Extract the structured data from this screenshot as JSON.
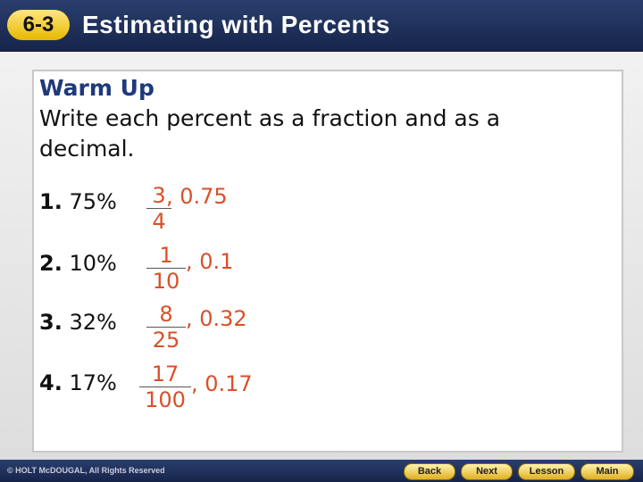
{
  "header": {
    "badge": "6-3",
    "title": "Estimating with Percents"
  },
  "content": {
    "heading": "Warm Up",
    "instructions": "Write each percent as a fraction and as a decimal.",
    "problems": [
      {
        "number": "1.",
        "percent": "75%",
        "numerator": "3",
        "denominator": "4",
        "decimal": ", 0.75"
      },
      {
        "number": "2.",
        "percent": "10%",
        "numerator": "1",
        "denominator": "10",
        "decimal": ", 0.1"
      },
      {
        "number": "3.",
        "percent": "32%",
        "numerator": "8",
        "denominator": "25",
        "decimal": ", 0.32"
      },
      {
        "number": "4.",
        "percent": "17%",
        "numerator": "17",
        "denominator": "100",
        "decimal": ", 0.17"
      }
    ]
  },
  "footer": {
    "copyright": "© HOLT McDOUGAL, All Rights Reserved",
    "buttons": [
      "Back",
      "Next",
      "Lesson",
      "Main"
    ]
  }
}
